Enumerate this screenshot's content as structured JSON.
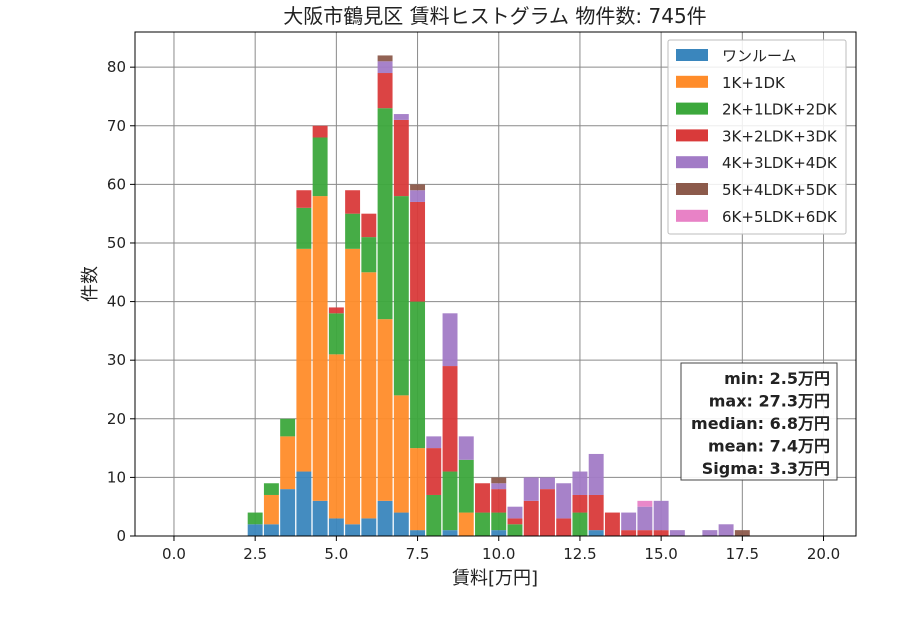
{
  "chart_data": {
    "type": "bar",
    "title": "大阪市鶴見区 賃料ヒストグラム 物件数: 745件",
    "xlabel": "賃料[万円]",
    "ylabel": "件数",
    "xlim": [
      -1.2,
      21.0
    ],
    "ylim": [
      0,
      86
    ],
    "bin_width": 0.5,
    "x_ticks": [
      "0.0",
      "2.5",
      "5.0",
      "7.5",
      "10.0",
      "12.5",
      "15.0",
      "17.5",
      "20.0"
    ],
    "x_tick_values": [
      0,
      2.5,
      5,
      7.5,
      10,
      12.5,
      15,
      17.5,
      20
    ],
    "y_ticks": [
      "0",
      "10",
      "20",
      "30",
      "40",
      "50",
      "60",
      "70",
      "80"
    ],
    "y_tick_values": [
      0,
      10,
      20,
      30,
      40,
      50,
      60,
      70,
      80
    ],
    "grid": true,
    "stacked": true,
    "legend_position": "top-right",
    "x": [
      2.5,
      3.0,
      3.5,
      4.0,
      4.5,
      5.0,
      5.5,
      6.0,
      6.5,
      7.0,
      7.5,
      8.0,
      8.5,
      9.0,
      9.5,
      10.0,
      10.5,
      11.0,
      11.5,
      12.0,
      12.5,
      13.0,
      13.5,
      14.0,
      14.5,
      15.0,
      15.5,
      16.0,
      16.5,
      17.0,
      17.5
    ],
    "series": [
      {
        "name": "ワンルーム",
        "color": "#3A86BD",
        "values": [
          2,
          2,
          8,
          11,
          6,
          3,
          2,
          3,
          6,
          4,
          1,
          0,
          1,
          0,
          0,
          1,
          0,
          0,
          0,
          0,
          0,
          1,
          0,
          0,
          0,
          0,
          0,
          0,
          0,
          0,
          0
        ]
      },
      {
        "name": "1K+1DK",
        "color": "#FF8C2A",
        "values": [
          0,
          5,
          9,
          38,
          52,
          28,
          47,
          42,
          31,
          20,
          14,
          0,
          0,
          4,
          0,
          0,
          0,
          0,
          0,
          0,
          0,
          0,
          0,
          0,
          0,
          0,
          0,
          0,
          0,
          0,
          0
        ]
      },
      {
        "name": "2K+1LDK+2DK",
        "color": "#3CA83C",
        "values": [
          2,
          2,
          3,
          7,
          10,
          7,
          6,
          6,
          36,
          34,
          25,
          7,
          10,
          9,
          4,
          3,
          2,
          0,
          0,
          0,
          4,
          0,
          0,
          0,
          0,
          0,
          0,
          0,
          0,
          0,
          0
        ]
      },
      {
        "name": "3K+2LDK+3DK",
        "color": "#D93A3A",
        "values": [
          0,
          0,
          0,
          3,
          2,
          1,
          4,
          4,
          6,
          13,
          17,
          8,
          18,
          0,
          5,
          4,
          1,
          6,
          8,
          3,
          3,
          6,
          4,
          1,
          1,
          1,
          0,
          0,
          0,
          0,
          0
        ]
      },
      {
        "name": "4K+3LDK+4DK",
        "color": "#A27BC6",
        "values": [
          0,
          0,
          0,
          0,
          0,
          0,
          0,
          0,
          2,
          1,
          2,
          2,
          9,
          4,
          0,
          1,
          2,
          4,
          2,
          6,
          4,
          7,
          0,
          3,
          4,
          5,
          1,
          0,
          1,
          2,
          0
        ]
      },
      {
        "name": "5K+4LDK+5DK",
        "color": "#8C5A4B",
        "values": [
          0,
          0,
          0,
          0,
          0,
          0,
          0,
          0,
          1,
          0,
          1,
          0,
          0,
          0,
          0,
          1,
          0,
          0,
          0,
          0,
          0,
          0,
          0,
          0,
          0,
          0,
          0,
          0,
          0,
          0,
          1
        ]
      },
      {
        "name": "6K+5LDK+6DK",
        "color": "#E882C6",
        "values": [
          0,
          0,
          0,
          0,
          0,
          0,
          0,
          0,
          0,
          0,
          0,
          0,
          0,
          0,
          0,
          0,
          0,
          0,
          0,
          0,
          0,
          0,
          0,
          0,
          1,
          0,
          0,
          0,
          0,
          0,
          0
        ]
      }
    ],
    "stats": [
      "min: 2.5万円",
      "max: 27.3万円",
      "median: 6.8万円",
      "mean: 7.4万円",
      "Sigma: 3.3万円"
    ]
  }
}
